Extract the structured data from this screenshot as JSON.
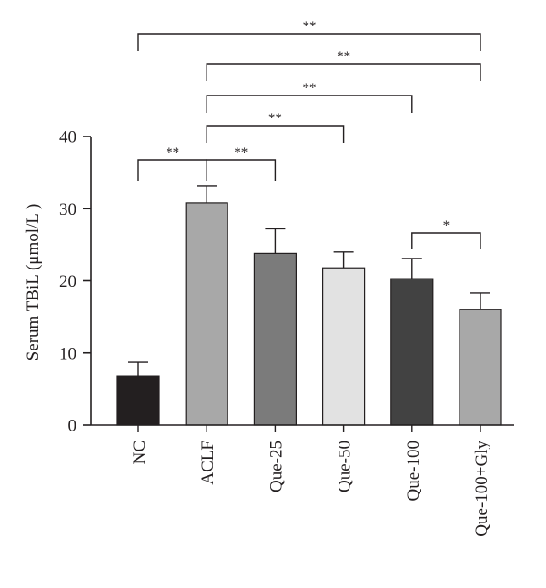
{
  "chart_data": {
    "type": "bar",
    "categories": [
      "NC",
      "ACLF",
      "Que-25",
      "Que-50",
      "Que-100",
      "Que-100+Gly"
    ],
    "values": [
      6.8,
      30.8,
      23.8,
      21.8,
      20.3,
      16.0
    ],
    "errors": [
      1.9,
      2.4,
      3.4,
      2.2,
      2.8,
      2.3
    ],
    "bar_colors": [
      "#231f20",
      "#a8a8a8",
      "#7b7b7b",
      "#e2e2e2",
      "#424242",
      "#a8a8a8"
    ],
    "title": "",
    "xlabel": "",
    "ylabel": "Serum TBiL (μmol/L )",
    "ylim": [
      0,
      40
    ],
    "yticks": [
      0,
      10,
      20,
      30,
      40
    ],
    "ytick_labels": [
      "0",
      "10",
      "20",
      "30",
      "40"
    ],
    "grid": false,
    "significance": [
      {
        "from": 0,
        "to": 5,
        "label": "**"
      },
      {
        "from": 1,
        "to": 5,
        "label": "**"
      },
      {
        "from": 1,
        "to": 4,
        "label": "**"
      },
      {
        "from": 1,
        "to": 3,
        "label": "**"
      },
      {
        "from": 0,
        "to": 1,
        "label": "**"
      },
      {
        "from": 1,
        "to": 2,
        "label": "**"
      },
      {
        "from": 4,
        "to": 5,
        "label": "*"
      }
    ]
  }
}
